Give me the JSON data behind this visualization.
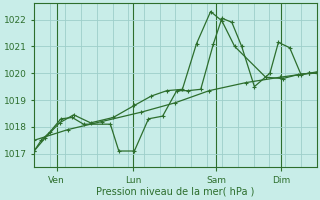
{
  "background_color": "#c8ede8",
  "grid_color": "#9ecfca",
  "line_color": "#2d6e2d",
  "xlabel": "Pression niveau de la mer( hPa )",
  "ylim": [
    1016.5,
    1022.6
  ],
  "yticks": [
    1017,
    1018,
    1019,
    1020,
    1021,
    1022
  ],
  "day_labels": [
    "Ven",
    "Lun",
    "Sam",
    "Dim"
  ],
  "day_positions": [
    0.08,
    0.35,
    0.645,
    0.875
  ],
  "series1_x": [
    0.0,
    0.025,
    0.055,
    0.095,
    0.135,
    0.175,
    0.27,
    0.3,
    0.355,
    0.405,
    0.455,
    0.505,
    0.545,
    0.59,
    0.635,
    0.665,
    0.7,
    0.735,
    0.78,
    0.835,
    0.865,
    0.905,
    0.945,
    0.975,
    1.0
  ],
  "series1_y": [
    1017.1,
    1017.5,
    1017.8,
    1018.3,
    1018.35,
    1018.1,
    1018.1,
    1017.1,
    1017.1,
    1018.3,
    1018.4,
    1019.35,
    1019.35,
    1019.4,
    1021.1,
    1022.05,
    1021.9,
    1021.0,
    1019.5,
    1020.0,
    1021.15,
    1020.95,
    1019.95,
    1020.0,
    1020.0
  ],
  "series2_x": [
    0.0,
    0.04,
    0.09,
    0.14,
    0.2,
    0.28,
    0.355,
    0.415,
    0.47,
    0.525,
    0.575,
    0.625,
    0.665,
    0.71,
    0.82,
    0.88,
    0.935,
    0.975,
    1.0
  ],
  "series2_y": [
    1017.1,
    1017.6,
    1018.15,
    1018.45,
    1018.15,
    1018.35,
    1018.8,
    1019.15,
    1019.35,
    1019.4,
    1021.1,
    1022.3,
    1021.95,
    1021.0,
    1019.85,
    1019.8,
    1019.95,
    1020.0,
    1020.0
  ],
  "series3_x": [
    0.0,
    0.12,
    0.24,
    0.38,
    0.5,
    0.62,
    0.75,
    0.87,
    0.975,
    1.0
  ],
  "series3_y": [
    1017.5,
    1017.9,
    1018.2,
    1018.55,
    1018.9,
    1019.35,
    1019.65,
    1019.85,
    1020.0,
    1020.05
  ]
}
